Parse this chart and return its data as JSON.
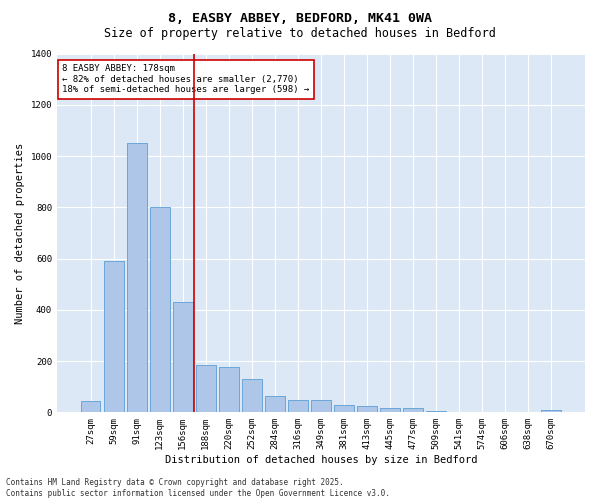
{
  "title1": "8, EASBY ABBEY, BEDFORD, MK41 0WA",
  "title2": "Size of property relative to detached houses in Bedford",
  "xlabel": "Distribution of detached houses by size in Bedford",
  "ylabel": "Number of detached properties",
  "categories": [
    "27sqm",
    "59sqm",
    "91sqm",
    "123sqm",
    "156sqm",
    "188sqm",
    "220sqm",
    "252sqm",
    "284sqm",
    "316sqm",
    "349sqm",
    "381sqm",
    "413sqm",
    "445sqm",
    "477sqm",
    "509sqm",
    "541sqm",
    "574sqm",
    "606sqm",
    "638sqm",
    "670sqm"
  ],
  "values": [
    45,
    590,
    1050,
    800,
    430,
    185,
    175,
    130,
    65,
    50,
    50,
    30,
    25,
    15,
    15,
    5,
    0,
    0,
    0,
    0,
    8
  ],
  "bar_color": "#aec6e8",
  "bar_edge_color": "#5a9fd4",
  "vline_color": "#cc0000",
  "vline_pos": 4.5,
  "annotation_text": "8 EASBY ABBEY: 178sqm\n← 82% of detached houses are smaller (2,770)\n18% of semi-detached houses are larger (598) →",
  "annotation_box_color": "#ffffff",
  "annotation_box_edge_color": "#cc0000",
  "ylim": [
    0,
    1400
  ],
  "yticks": [
    0,
    200,
    400,
    600,
    800,
    1000,
    1200,
    1400
  ],
  "background_color": "#dce8f5",
  "footer_text": "Contains HM Land Registry data © Crown copyright and database right 2025.\nContains public sector information licensed under the Open Government Licence v3.0.",
  "title_fontsize": 9.5,
  "subtitle_fontsize": 8.5,
  "tick_fontsize": 6.5,
  "label_fontsize": 7.5,
  "annotation_fontsize": 6.5,
  "footer_fontsize": 5.5
}
